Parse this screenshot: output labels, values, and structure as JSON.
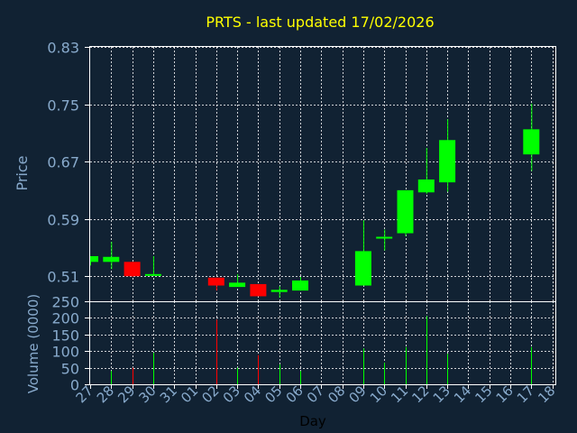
{
  "chart_title": "PRTS - last updated 17/02/2026",
  "colors": {
    "background": "#112233",
    "axis": "#ffffff",
    "grid": "#ffffff",
    "title": "#ffff00",
    "labels": "#88aacc",
    "up": "#00ff00",
    "down": "#ff0000"
  },
  "chart_data": [
    {
      "type": "candlestick",
      "ylabel": "Price",
      "ylim": [
        0.475,
        0.83
      ],
      "yticks": [
        "0.83",
        "0.75",
        "0.67",
        "0.59",
        "0.51"
      ],
      "ytick_values": [
        0.83,
        0.75,
        0.67,
        0.59,
        0.51
      ],
      "grid": true,
      "x_categories": [
        "27",
        "28",
        "29",
        "30",
        "31",
        "01",
        "02",
        "03",
        "04",
        "05",
        "06",
        "07",
        "08",
        "09",
        "10",
        "11",
        "12",
        "13",
        "14",
        "15",
        "16",
        "17",
        "18"
      ],
      "candles": [
        {
          "x": "27",
          "open": 0.53,
          "high": 0.538,
          "low": 0.525,
          "close": 0.538
        },
        {
          "x": "28",
          "open": 0.53,
          "high": 0.558,
          "low": 0.52,
          "close": 0.537
        },
        {
          "x": "29",
          "open": 0.53,
          "high": 0.53,
          "low": 0.509,
          "close": 0.51
        },
        {
          "x": "30",
          "open": 0.511,
          "high": 0.538,
          "low": 0.511,
          "close": 0.513
        },
        {
          "x": "02",
          "open": 0.508,
          "high": 0.508,
          "low": 0.49,
          "close": 0.497
        },
        {
          "x": "03",
          "open": 0.495,
          "high": 0.513,
          "low": 0.495,
          "close": 0.501
        },
        {
          "x": "04",
          "open": 0.499,
          "high": 0.499,
          "low": 0.482,
          "close": 0.482
        },
        {
          "x": "05",
          "open": 0.488,
          "high": 0.496,
          "low": 0.48,
          "close": 0.491
        },
        {
          "x": "06",
          "open": 0.49,
          "high": 0.509,
          "low": 0.49,
          "close": 0.504
        },
        {
          "x": "09",
          "open": 0.497,
          "high": 0.588,
          "low": 0.497,
          "close": 0.545
        },
        {
          "x": "10",
          "open": 0.563,
          "high": 0.575,
          "low": 0.546,
          "close": 0.565
        },
        {
          "x": "11",
          "open": 0.57,
          "high": 0.63,
          "low": 0.566,
          "close": 0.63
        },
        {
          "x": "12",
          "open": 0.627,
          "high": 0.689,
          "low": 0.625,
          "close": 0.645
        },
        {
          "x": "13",
          "open": 0.641,
          "high": 0.729,
          "low": 0.628,
          "close": 0.7
        },
        {
          "x": "17",
          "open": 0.68,
          "high": 0.751,
          "low": 0.657,
          "close": 0.715
        }
      ]
    },
    {
      "type": "bar",
      "xlabel": "Day",
      "ylabel": "Volume (0000)",
      "ylim": [
        0,
        250
      ],
      "yticks": [
        "250",
        "200",
        "150",
        "100",
        "50",
        "0"
      ],
      "ytick_values": [
        250,
        200,
        150,
        100,
        50,
        0
      ],
      "grid": true,
      "bars": [
        {
          "x": "27",
          "value": 0,
          "dir": "down"
        },
        {
          "x": "28",
          "value": 40,
          "dir": "up"
        },
        {
          "x": "29",
          "value": 50,
          "dir": "down"
        },
        {
          "x": "30",
          "value": 95,
          "dir": "up"
        },
        {
          "x": "02",
          "value": 195,
          "dir": "down"
        },
        {
          "x": "03",
          "value": 50,
          "dir": "up"
        },
        {
          "x": "04",
          "value": 88,
          "dir": "down"
        },
        {
          "x": "05",
          "value": 60,
          "dir": "up"
        },
        {
          "x": "06",
          "value": 40,
          "dir": "up"
        },
        {
          "x": "09",
          "value": 108,
          "dir": "up"
        },
        {
          "x": "10",
          "value": 65,
          "dir": "up"
        },
        {
          "x": "11",
          "value": 112,
          "dir": "up"
        },
        {
          "x": "12",
          "value": 205,
          "dir": "up"
        },
        {
          "x": "13",
          "value": 92,
          "dir": "up"
        },
        {
          "x": "17",
          "value": 112,
          "dir": "up"
        }
      ]
    }
  ]
}
